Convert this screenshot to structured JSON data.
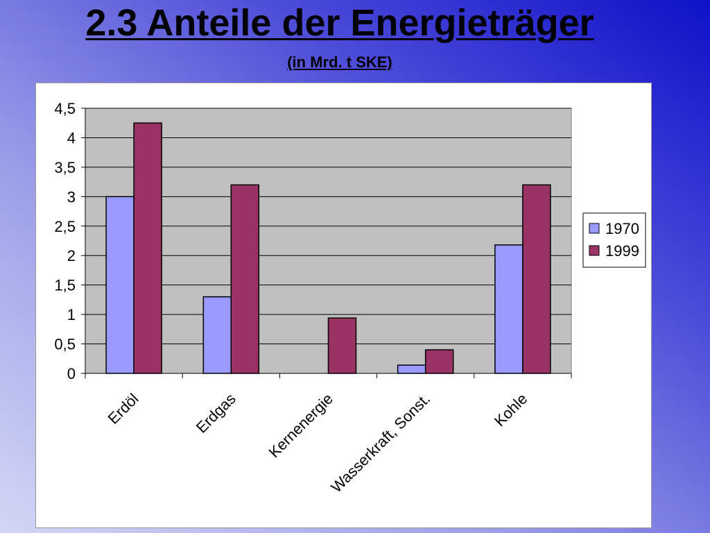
{
  "slide": {
    "title": "2.3 Anteile der Energieträger",
    "subtitle": "(in Mrd. t SKE)"
  },
  "chart_data": {
    "type": "bar",
    "categories": [
      "Erdöl",
      "Erdgas",
      "Kernenergie",
      "Wasserkraft, Sonst.",
      "Kohle"
    ],
    "series": [
      {
        "name": "1970",
        "values": [
          3.0,
          1.3,
          0.0,
          0.14,
          2.18
        ],
        "color": "#9999ff"
      },
      {
        "name": "1999",
        "values": [
          4.25,
          3.2,
          0.94,
          0.4,
          3.2
        ],
        "color": "#993366"
      }
    ],
    "ylim": [
      0,
      4.5
    ],
    "yticks": [
      "0",
      "0,5",
      "1",
      "1,5",
      "2",
      "2,5",
      "3",
      "3,5",
      "4",
      "4,5"
    ],
    "grid": true,
    "legend": "right",
    "plot_background": "#c0c0c0"
  }
}
